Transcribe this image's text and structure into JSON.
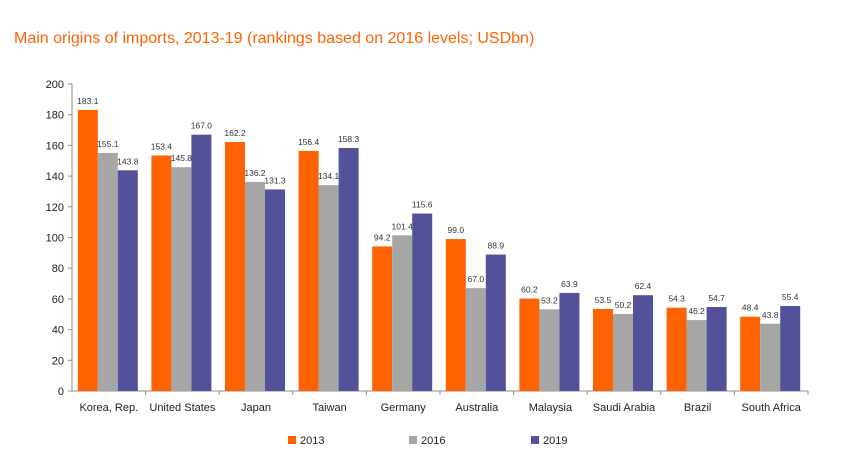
{
  "chart_data": {
    "type": "bar",
    "title": "Main origins of imports, 2013-19 (rankings based on 2016 levels; USDbn)",
    "xlabel": "",
    "ylabel": "",
    "ylim": [
      0,
      200
    ],
    "yticks": [
      "0",
      "20",
      "40",
      "60",
      "80",
      "100",
      "120",
      "140",
      "160",
      "180",
      "200"
    ],
    "grid": false,
    "legend": "bottom",
    "categories": [
      "Korea, Rep.",
      "United States",
      "Japan",
      "Taiwan",
      "Germany",
      "Australia",
      "Malaysia",
      "Saudi Arabia",
      "Brazil",
      "South Africa"
    ],
    "series": [
      {
        "name": "2013",
        "color": "#ff6200",
        "values": [
          183.1,
          153.4,
          162.2,
          156.4,
          94.2,
          99.0,
          60.2,
          53.5,
          54.3,
          48.4
        ],
        "labels": [
          "183.1",
          "153.4",
          "162.2",
          "156.4",
          "94.2",
          "99.0",
          "60.2",
          "53.5",
          "54.3",
          "48.4"
        ]
      },
      {
        "name": "2016",
        "color": "#a6a6a6",
        "values": [
          155.1,
          145.8,
          136.2,
          134.1,
          101.4,
          67.0,
          53.2,
          50.2,
          46.2,
          43.8
        ],
        "labels": [
          "155.1",
          "145.8",
          "136.2",
          "134.1",
          "101.4",
          "67.0",
          "53.2",
          "50.2",
          "46.2",
          "43.8"
        ]
      },
      {
        "name": "2019",
        "color": "#525199",
        "values": [
          143.8,
          167.0,
          131.3,
          158.3,
          115.6,
          88.9,
          63.9,
          62.4,
          54.7,
          55.4
        ],
        "labels": [
          "143.8",
          "167.0",
          "131.3",
          "158.3",
          "115.6",
          "88.9",
          "63.9",
          "62.4",
          "54.7",
          "55.4"
        ]
      }
    ]
  }
}
